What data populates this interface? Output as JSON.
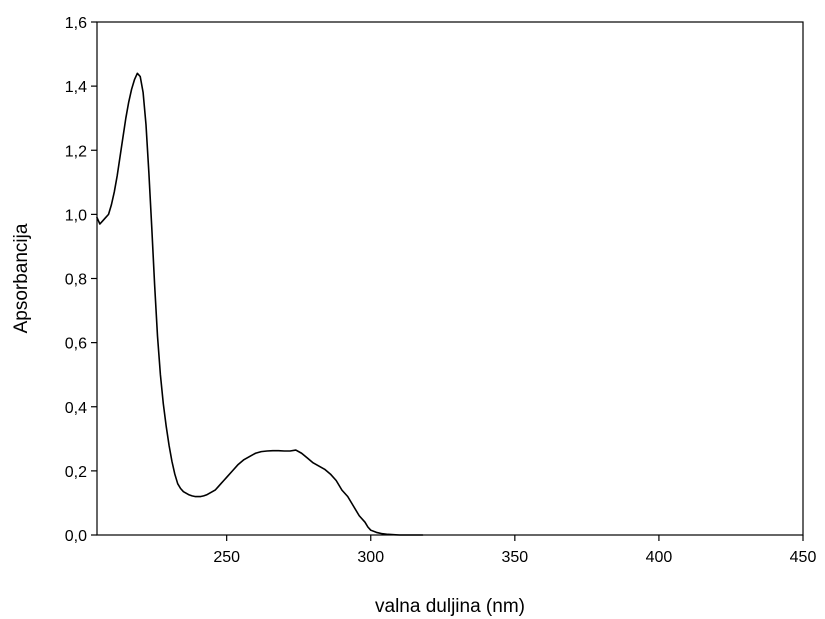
{
  "chart_data": {
    "type": "line",
    "title": "",
    "xlabel": "valna duljina (nm)",
    "ylabel": "Apsorbancija",
    "xlim": [
      205,
      450
    ],
    "ylim": [
      0,
      1.6
    ],
    "xticks": [
      {
        "value": 250,
        "label": "250"
      },
      {
        "value": 300,
        "label": "300"
      },
      {
        "value": 350,
        "label": "350"
      },
      {
        "value": 400,
        "label": "400"
      },
      {
        "value": 450,
        "label": "450"
      }
    ],
    "yticks": [
      {
        "value": 0.0,
        "label": "0,0"
      },
      {
        "value": 0.2,
        "label": "0,2"
      },
      {
        "value": 0.4,
        "label": "0,4"
      },
      {
        "value": 0.6,
        "label": "0,6"
      },
      {
        "value": 0.8,
        "label": "0,8"
      },
      {
        "value": 1.0,
        "label": "1,0"
      },
      {
        "value": 1.2,
        "label": "1,2"
      },
      {
        "value": 1.4,
        "label": "1,4"
      },
      {
        "value": 1.6,
        "label": "1,6"
      }
    ],
    "grid": false,
    "legend": "none",
    "line_color": "#000000",
    "series": [
      {
        "x": [
          205,
          206,
          207,
          208,
          209,
          210,
          211,
          212,
          213,
          214,
          215,
          216,
          217,
          218,
          219,
          220,
          221,
          222,
          223,
          224,
          225,
          226,
          227,
          228,
          229,
          230,
          231,
          232,
          233,
          234,
          235,
          236,
          237,
          238,
          239,
          240,
          241,
          242,
          243,
          244,
          245,
          246,
          247,
          248,
          249,
          250,
          252,
          254,
          256,
          258,
          260,
          262,
          264,
          266,
          268,
          270,
          272,
          274,
          276,
          278,
          280,
          282,
          284,
          286,
          288,
          290,
          292,
          294,
          296,
          298,
          299,
          300,
          302,
          304,
          306,
          308,
          310,
          312,
          314,
          316,
          318
        ],
        "values": [
          0.99,
          0.97,
          0.98,
          0.99,
          1.0,
          1.03,
          1.07,
          1.12,
          1.18,
          1.24,
          1.3,
          1.35,
          1.39,
          1.42,
          1.44,
          1.43,
          1.38,
          1.28,
          1.13,
          0.96,
          0.78,
          0.62,
          0.5,
          0.41,
          0.34,
          0.28,
          0.23,
          0.19,
          0.16,
          0.145,
          0.135,
          0.13,
          0.125,
          0.122,
          0.12,
          0.12,
          0.12,
          0.122,
          0.125,
          0.13,
          0.135,
          0.14,
          0.15,
          0.16,
          0.17,
          0.18,
          0.2,
          0.22,
          0.235,
          0.245,
          0.255,
          0.26,
          0.262,
          0.263,
          0.263,
          0.262,
          0.262,
          0.265,
          0.255,
          0.24,
          0.225,
          0.215,
          0.205,
          0.19,
          0.17,
          0.14,
          0.12,
          0.09,
          0.06,
          0.04,
          0.025,
          0.015,
          0.008,
          0.004,
          0.002,
          0.001,
          0.0,
          0.0,
          0.0,
          0.0,
          0.0
        ]
      }
    ]
  }
}
